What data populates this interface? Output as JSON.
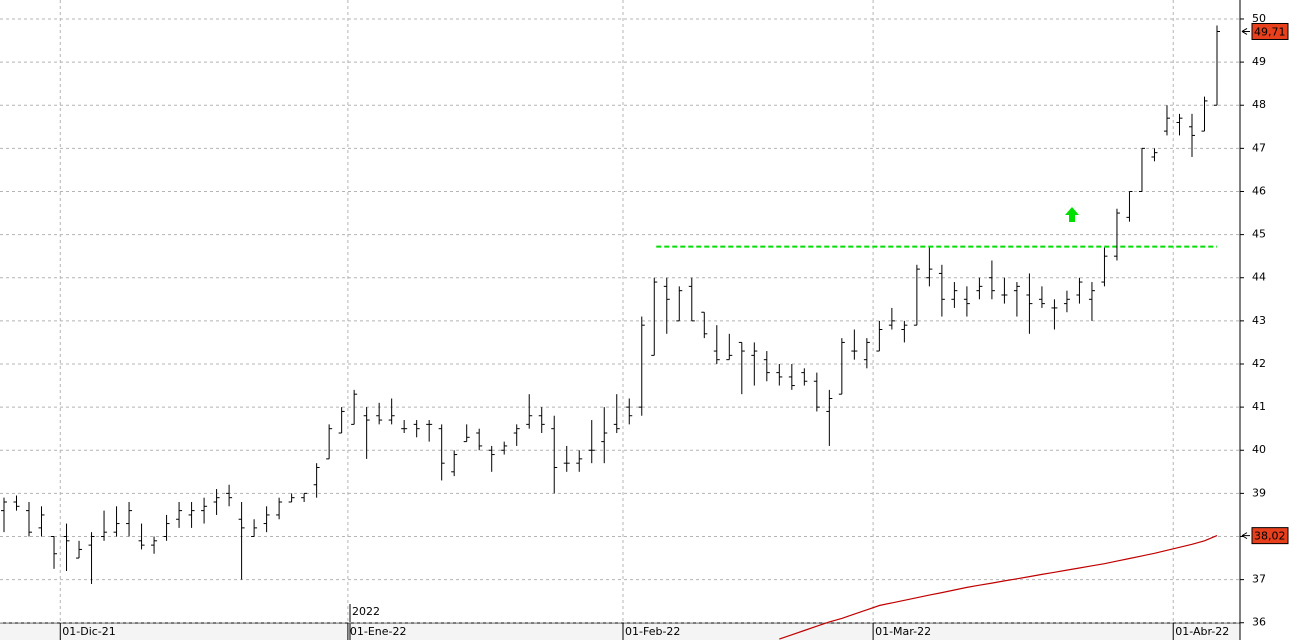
{
  "chart_data": {
    "type": "ohlc",
    "annotations": {
      "year": "2022"
    },
    "categories": [
      null,
      null,
      null,
      null,
      null,
      "01-Dic-21",
      null,
      null,
      null,
      null,
      null,
      null,
      null,
      null,
      null,
      null,
      null,
      null,
      null,
      null,
      null,
      null,
      null,
      null,
      null,
      null,
      null,
      null,
      "01-Ene-22",
      null,
      null,
      null,
      null,
      null,
      null,
      null,
      null,
      null,
      null,
      null,
      null,
      null,
      null,
      null,
      null,
      null,
      null,
      null,
      null,
      null,
      "01-Feb-22",
      null,
      null,
      null,
      null,
      null,
      null,
      null,
      null,
      null,
      null,
      null,
      null,
      null,
      null,
      null,
      null,
      null,
      null,
      null,
      "01-Mar-22",
      null,
      null,
      null,
      null,
      null,
      null,
      null,
      null,
      null,
      null,
      null,
      null,
      null,
      null,
      null,
      null,
      null,
      null,
      null,
      null,
      null,
      null,
      null,
      "01-Abr-22",
      null,
      null,
      null
    ],
    "color": "#000000",
    "open": [
      38.6,
      38.8,
      38.6,
      38.2,
      38.0,
      38.0,
      37.5,
      37.8,
      38.0,
      38.1,
      38.3,
      37.9,
      37.8,
      38.0,
      38.4,
      38.5,
      38.6,
      38.8,
      39.0,
      38.4,
      38.0,
      38.3,
      38.5,
      38.8,
      38.9,
      39.2,
      39.8,
      40.4,
      40.6,
      40.8,
      40.8,
      40.7,
      40.5,
      40.6,
      40.6,
      40.5,
      39.5,
      40.2,
      40.4,
      40.0,
      40.0,
      40.4,
      40.6,
      40.8,
      40.5,
      39.7,
      39.7,
      40.0,
      40.2,
      40.6,
      41.0,
      41.0,
      42.2,
      43.8,
      43.0,
      43.8,
      43.2,
      42.3,
      42.1,
      42.5,
      42.2,
      42.1,
      41.8,
      41.7,
      41.8,
      41.6,
      40.9,
      41.3,
      42.3,
      42.1,
      42.3,
      42.9,
      42.8,
      42.9,
      44.0,
      44.1,
      43.5,
      43.5,
      43.7,
      44.0,
      43.6,
      43.7,
      43.6,
      43.5,
      43.3,
      43.4,
      43.6,
      43.5,
      43.9,
      44.5,
      45.4,
      46.0,
      46.8,
      47.4,
      47.6,
      47.5,
      47.4,
      48.0
    ],
    "high": [
      38.9,
      38.95,
      38.8,
      38.7,
      38.0,
      38.3,
      37.9,
      38.1,
      38.6,
      38.7,
      38.8,
      38.3,
      38.0,
      38.5,
      38.8,
      38.8,
      38.9,
      39.1,
      39.2,
      38.8,
      38.4,
      38.7,
      38.9,
      39.0,
      39.0,
      39.7,
      40.6,
      41.0,
      41.4,
      41.0,
      41.1,
      41.2,
      40.7,
      40.7,
      40.7,
      40.6,
      40.0,
      40.6,
      40.5,
      40.1,
      40.2,
      40.6,
      41.3,
      41.0,
      40.8,
      40.1,
      40.0,
      40.7,
      41.0,
      41.3,
      41.2,
      43.1,
      44.0,
      44.0,
      43.8,
      44.0,
      43.2,
      42.9,
      42.7,
      42.5,
      42.5,
      42.3,
      42.0,
      42.0,
      41.9,
      41.8,
      41.4,
      42.6,
      42.8,
      42.6,
      43.0,
      43.3,
      43.0,
      44.3,
      44.7,
      44.3,
      43.9,
      43.8,
      44.0,
      44.4,
      44.0,
      43.9,
      44.1,
      43.8,
      43.5,
      43.7,
      44.0,
      43.9,
      44.7,
      45.6,
      46.0,
      47.0,
      47.0,
      48.0,
      47.8,
      47.8,
      48.2,
      49.85
    ],
    "low": [
      38.1,
      38.6,
      38.0,
      38.0,
      37.25,
      37.2,
      37.5,
      36.9,
      37.9,
      38.0,
      38.0,
      37.7,
      37.6,
      37.9,
      38.2,
      38.2,
      38.3,
      38.5,
      38.7,
      37.0,
      38.0,
      38.1,
      38.4,
      38.8,
      38.8,
      38.9,
      39.8,
      40.4,
      40.6,
      39.8,
      40.6,
      40.6,
      40.4,
      40.3,
      40.2,
      39.3,
      39.4,
      40.2,
      40.0,
      39.5,
      39.9,
      40.1,
      40.5,
      40.4,
      39.0,
      39.5,
      39.5,
      39.7,
      39.7,
      40.4,
      40.6,
      40.8,
      42.2,
      42.7,
      43.0,
      43.0,
      42.6,
      42.0,
      42.1,
      41.3,
      41.5,
      41.6,
      41.5,
      41.4,
      41.5,
      40.9,
      40.1,
      41.3,
      42.1,
      41.9,
      42.3,
      42.8,
      42.5,
      42.9,
      43.8,
      43.1,
      43.3,
      43.1,
      43.5,
      43.5,
      43.4,
      43.1,
      42.7,
      43.3,
      42.8,
      43.2,
      43.4,
      43.0,
      43.8,
      44.4,
      45.3,
      46.0,
      46.7,
      47.3,
      47.3,
      46.8,
      47.4,
      48.0
    ],
    "close": [
      38.8,
      38.7,
      38.1,
      38.5,
      37.6,
      37.9,
      37.7,
      38.0,
      38.1,
      38.3,
      38.6,
      37.8,
      37.9,
      38.3,
      38.6,
      38.6,
      38.7,
      38.9,
      38.9,
      38.2,
      38.2,
      38.5,
      38.8,
      38.9,
      39.0,
      39.6,
      40.5,
      40.9,
      41.3,
      40.7,
      40.7,
      40.8,
      40.5,
      40.5,
      40.6,
      39.7,
      39.9,
      40.3,
      40.1,
      39.9,
      40.1,
      40.5,
      40.8,
      40.6,
      39.6,
      39.7,
      39.8,
      40.0,
      40.4,
      40.5,
      40.8,
      42.9,
      43.9,
      43.5,
      43.7,
      43.0,
      42.7,
      42.1,
      42.2,
      42.3,
      42.3,
      41.8,
      41.7,
      41.5,
      41.6,
      41.0,
      41.2,
      42.5,
      42.3,
      42.5,
      42.8,
      43.0,
      42.9,
      44.2,
      44.2,
      43.5,
      43.7,
      43.4,
      43.8,
      43.7,
      43.6,
      43.8,
      43.4,
      43.4,
      43.3,
      43.5,
      43.9,
      43.7,
      44.5,
      45.5,
      46.0,
      47.0,
      46.9,
      47.7,
      47.7,
      47.3,
      48.1,
      49.71
    ],
    "close_label": "49,71",
    "moving_average": {
      "color": "#c00000",
      "last_label": "38,02",
      "values": [
        null,
        null,
        null,
        null,
        null,
        null,
        null,
        null,
        null,
        null,
        null,
        null,
        null,
        null,
        null,
        null,
        null,
        null,
        null,
        null,
        null,
        null,
        null,
        null,
        null,
        null,
        null,
        null,
        null,
        null,
        null,
        null,
        null,
        null,
        null,
        null,
        null,
        null,
        null,
        null,
        null,
        null,
        null,
        null,
        null,
        null,
        null,
        null,
        null,
        null,
        null,
        null,
        null,
        null,
        null,
        null,
        null,
        null,
        null,
        null,
        null,
        null,
        35.62,
        35.72,
        35.82,
        35.92,
        36.02,
        36.1,
        36.2,
        36.3,
        36.4,
        36.46,
        36.52,
        36.58,
        36.64,
        36.7,
        36.76,
        36.82,
        36.87,
        36.92,
        36.97,
        37.02,
        37.07,
        37.12,
        37.17,
        37.22,
        37.27,
        37.32,
        37.37,
        37.43,
        37.49,
        37.55,
        37.61,
        37.68,
        37.75,
        37.82,
        37.9,
        38.02
      ]
    },
    "resistance": {
      "value": 44.72,
      "color": "#00e000"
    },
    "label_color": "#e8401c",
    "ylim": [
      35.6,
      50.44
    ],
    "yticks": [
      36,
      37,
      38,
      39,
      40,
      41,
      42,
      43,
      44,
      45,
      46,
      47,
      48,
      49,
      50
    ],
    "grid": true
  }
}
